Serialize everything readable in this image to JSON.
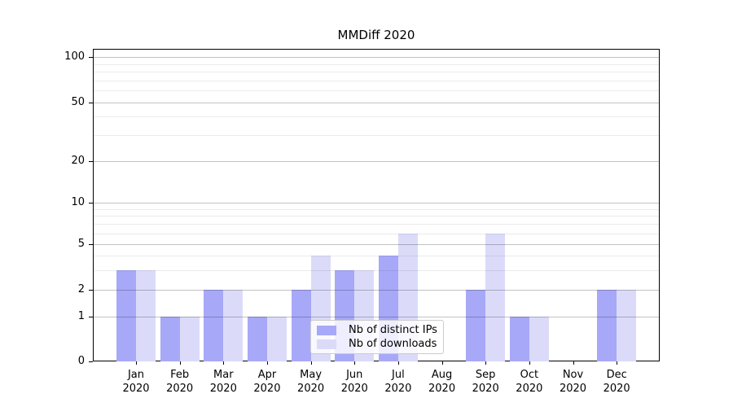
{
  "chart": {
    "title": "MMDiff 2020"
  },
  "chart_data": {
    "type": "bar",
    "title": "MMDiff 2020",
    "categories": [
      "Jan 2020",
      "Feb 2020",
      "Mar 2020",
      "Apr 2020",
      "May 2020",
      "Jun 2020",
      "Jul 2020",
      "Aug 2020",
      "Sep 2020",
      "Oct 2020",
      "Nov 2020",
      "Dec 2020"
    ],
    "series": [
      {
        "name": "Nb of distinct IPs",
        "color": "#a8a8f8",
        "values": [
          3,
          1,
          2,
          1,
          2,
          3,
          4,
          0,
          2,
          1,
          0,
          2
        ]
      },
      {
        "name": "Nb of downloads",
        "color": "#dbdbf9",
        "values": [
          3,
          1,
          2,
          1,
          4,
          3,
          6,
          0,
          6,
          1,
          0,
          2
        ]
      }
    ],
    "yscale": "symlog",
    "ylim": [
      0,
      112
    ],
    "yticks_major": [
      0,
      1,
      2,
      5,
      10,
      20,
      50,
      100
    ],
    "yticks_minor": [
      3,
      4,
      6,
      7,
      8,
      9,
      30,
      40,
      60,
      70,
      80,
      90
    ],
    "grid": true,
    "legend_position": "lower center"
  }
}
